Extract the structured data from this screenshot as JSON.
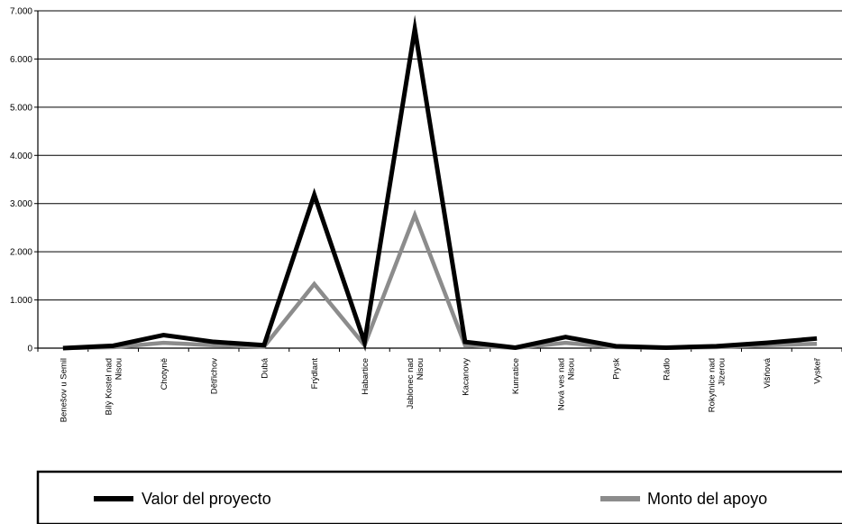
{
  "chart_data": {
    "type": "line",
    "categories": [
      [
        "Benešov u Semil"
      ],
      [
        "Bílý  Kostel nad",
        "Nisou"
      ],
      [
        "Chotyně"
      ],
      [
        "Dětřichov"
      ],
      [
        "Dubá"
      ],
      [
        "Frýdlant"
      ],
      [
        "Habartice"
      ],
      [
        "Jablonec nad",
        "Nisou"
      ],
      [
        "Kacanovy"
      ],
      [
        "Kunratice"
      ],
      [
        "Nová ves nad",
        "Nisou"
      ],
      [
        "Prysk"
      ],
      [
        "Rádlo"
      ],
      [
        "Rokytnice nad",
        "Jizerou"
      ],
      [
        "Višňová"
      ],
      [
        "Vyskeř"
      ]
    ],
    "series": [
      {
        "name": "Valor  del proyecto",
        "color": "#000000",
        "values": [
          0,
          50,
          270,
          130,
          60,
          3180,
          120,
          6620,
          130,
          10,
          230,
          40,
          10,
          40,
          110,
          200
        ]
      },
      {
        "name": "Monto del apoyo",
        "color": "#8c8c8c",
        "values": [
          0,
          20,
          110,
          60,
          30,
          1330,
          60,
          2760,
          60,
          5,
          110,
          20,
          5,
          20,
          60,
          90
        ]
      }
    ],
    "yticks": [
      "0",
      "1.000",
      "2.000",
      "3.000",
      "4.000",
      "5.000",
      "6.000",
      "7.000"
    ],
    "ylim": [
      0,
      7000
    ],
    "grid": true,
    "legend_position": "bottom"
  }
}
